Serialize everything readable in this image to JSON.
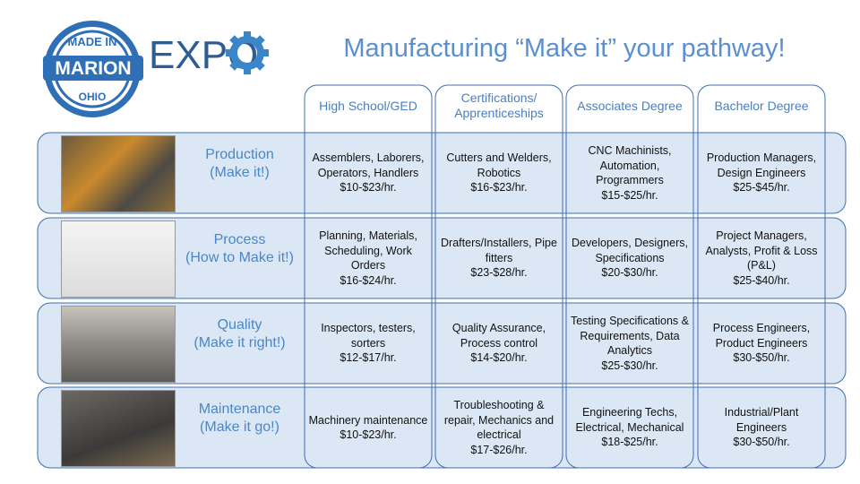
{
  "logo": {
    "top": "MADE IN",
    "middle": "MARION",
    "bottom": "OHIO",
    "expo": "EXPO"
  },
  "title": "Manufacturing “Make it” your pathway!",
  "columns": [
    "High School/GED",
    "Certifications/ Apprenticeships",
    "Associates Degree",
    "Bachelor Degree"
  ],
  "rows": [
    {
      "label": "Production",
      "sublabel": "(Make it!)",
      "cells": [
        {
          "roles": "Assemblers, Laborers, Operators, Handlers",
          "pay": "$10-$23/hr."
        },
        {
          "roles": "Cutters and Welders, Robotics",
          "pay": "$16-$23/hr."
        },
        {
          "roles": "CNC Machinists, Automation, Programmers",
          "pay": "$15-$25/hr."
        },
        {
          "roles": "Production Managers, Design Engineers",
          "pay": "$25-$45/hr."
        }
      ]
    },
    {
      "label": "Process",
      "sublabel": "(How to Make it!)",
      "cells": [
        {
          "roles": "Planning, Materials, Scheduling, Work Orders",
          "pay": "$16-$24/hr."
        },
        {
          "roles": "Drafters/Installers, Pipe fitters",
          "pay": "$23-$28/hr."
        },
        {
          "roles": "Developers, Designers, Specifications",
          "pay": "$20-$30/hr."
        },
        {
          "roles": "Project Managers, Analysts, Profit & Loss (P&L)",
          "pay": "$25-$40/hr."
        }
      ]
    },
    {
      "label": "Quality",
      "sublabel": "(Make it right!)",
      "cells": [
        {
          "roles": "Inspectors, testers, sorters",
          "pay": "$12-$17/hr."
        },
        {
          "roles": "Quality Assurance, Process control",
          "pay": "$14-$20/hr."
        },
        {
          "roles": "Testing Specifications & Requirements, Data Analytics",
          "pay": "$25-$30/hr."
        },
        {
          "roles": "Process Engineers, Product Engineers",
          "pay": "$30-$50/hr."
        }
      ]
    },
    {
      "label": "Maintenance",
      "sublabel": "(Make it go!)",
      "cells": [
        {
          "roles": "Machinery maintenance",
          "pay": "$10-$23/hr."
        },
        {
          "roles": "Troubleshooting & repair, Mechanics and electrical",
          "pay": "$17-$26/hr."
        },
        {
          "roles": "Engineering Techs, Electrical, Mechanical",
          "pay": "$18-$25/hr."
        },
        {
          "roles": "Industrial/Plant Engineers",
          "pay": "$30-$50/hr."
        }
      ]
    }
  ]
}
